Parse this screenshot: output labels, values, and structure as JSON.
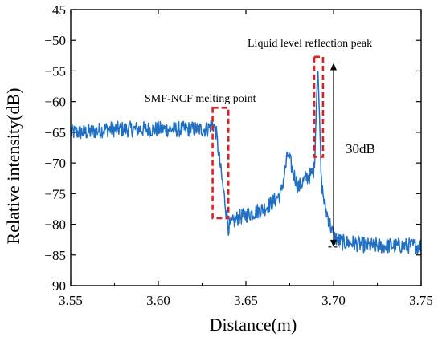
{
  "chart_data": {
    "type": "line",
    "title": "",
    "xlabel": "Distance(m)",
    "ylabel": "Relative intensity(dB)",
    "xlim": [
      3.55,
      3.75
    ],
    "ylim": [
      -90,
      -45
    ],
    "xticks": [
      "3.55",
      "3.60",
      "3.65",
      "3.70",
      "3.75"
    ],
    "yticks": [
      "−45",
      "−50",
      "−55",
      "−60",
      "−65",
      "−70",
      "−75",
      "−80",
      "−85",
      "−90"
    ],
    "grid": false,
    "colors": {
      "series": "#1f6fc5",
      "highlight": "#e02020",
      "axis": "#000000"
    },
    "series": [
      {
        "name": "",
        "x": [
          3.55,
          3.56,
          3.57,
          3.58,
          3.59,
          3.6,
          3.61,
          3.62,
          3.628,
          3.631,
          3.633,
          3.636,
          3.64,
          3.645,
          3.65,
          3.655,
          3.66,
          3.665,
          3.67,
          3.674,
          3.677,
          3.68,
          3.684,
          3.687,
          3.689,
          3.69,
          3.691,
          3.692,
          3.693,
          3.695,
          3.697,
          3.7,
          3.705,
          3.71,
          3.72,
          3.73,
          3.74,
          3.75
        ],
        "y": [
          -65,
          -65,
          -64.5,
          -64.5,
          -64.5,
          -64.5,
          -64.5,
          -64.5,
          -64.5,
          -63.5,
          -65,
          -72,
          -80.5,
          -79,
          -78.5,
          -78,
          -77.5,
          -76.5,
          -75,
          -68.5,
          -71.5,
          -74,
          -72.5,
          -72,
          -71,
          -63,
          -54,
          -62,
          -73,
          -77,
          -79,
          -82,
          -83,
          -83,
          -83.5,
          -83.5,
          -83.5,
          -83.5
        ]
      }
    ],
    "annotations": [
      {
        "text": "SMF-NCF melting point"
      },
      {
        "text": "Liquid level reflection peak"
      },
      {
        "text": "30dB"
      }
    ],
    "highlight_boxes": [
      {
        "x0": 3.631,
        "x1": 3.64,
        "y0": -79,
        "y1": -61
      },
      {
        "x0": 3.689,
        "x1": 3.694,
        "y0": -69,
        "y1": -52.7
      }
    ],
    "measurement": {
      "x": 3.7,
      "y_top": -53.7,
      "y_bottom": -83.7,
      "label": "30dB"
    }
  }
}
